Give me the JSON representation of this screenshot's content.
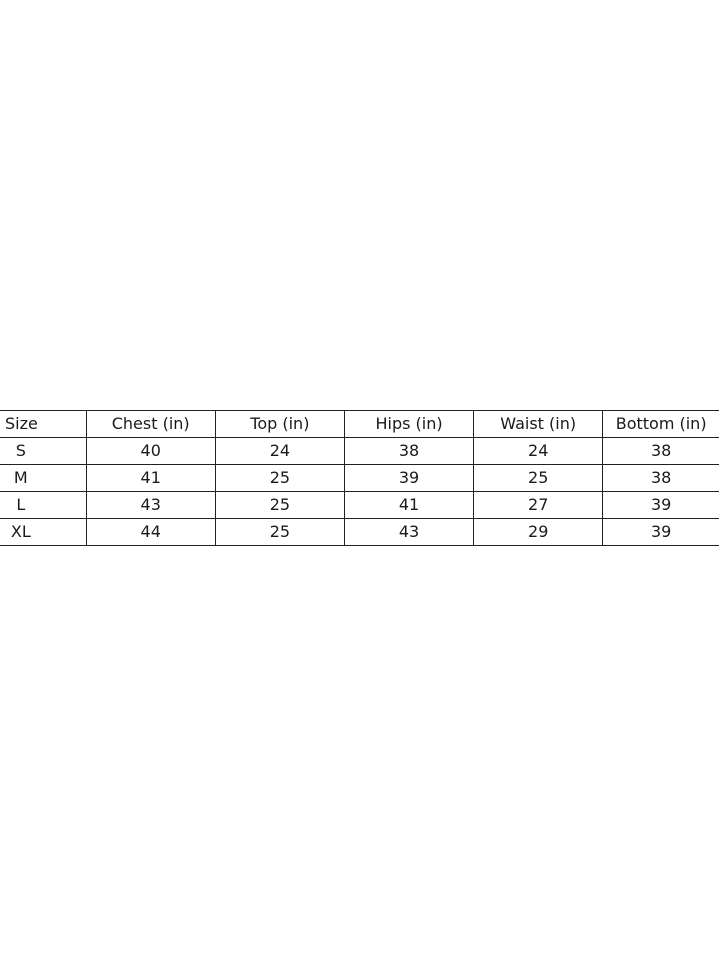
{
  "table": {
    "headers": [
      "Size",
      "Chest (in)",
      "Top (in)",
      "Hips (in)",
      "Waist (in)",
      "Bottom (in)"
    ],
    "rows": [
      [
        "S",
        "40",
        "24",
        "38",
        "24",
        "38"
      ],
      [
        "M",
        "41",
        "25",
        "39",
        "25",
        "38"
      ],
      [
        "L",
        "43",
        "25",
        "41",
        "27",
        "39"
      ],
      [
        "XL",
        "44",
        "25",
        "43",
        "29",
        "39"
      ]
    ]
  }
}
